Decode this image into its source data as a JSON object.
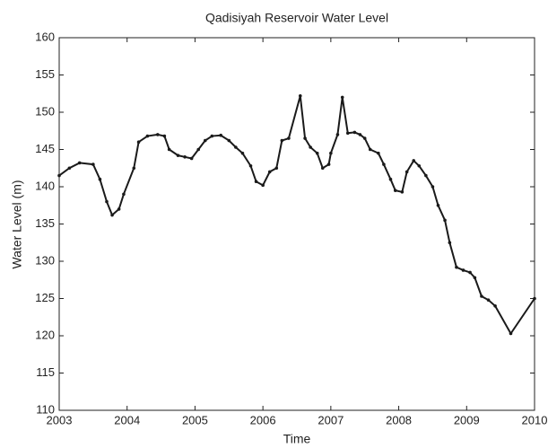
{
  "chart_data": {
    "type": "line",
    "title": "Qadisiyah Reservoir Water Level",
    "x_label": "Time",
    "y_label": "Water Level (m)",
    "x": [
      2003.0,
      2003.15,
      2003.3,
      2003.5,
      2003.6,
      2003.7,
      2003.78,
      2003.88,
      2003.95,
      2004.1,
      2004.17,
      2004.3,
      2004.45,
      2004.55,
      2004.62,
      2004.75,
      2004.85,
      2004.95,
      2005.05,
      2005.15,
      2005.25,
      2005.38,
      2005.5,
      2005.6,
      2005.7,
      2005.82,
      2005.9,
      2006.0,
      2006.1,
      2006.2,
      2006.28,
      2006.38,
      2006.55,
      2006.62,
      2006.7,
      2006.8,
      2006.88,
      2006.97,
      2007.0,
      2007.1,
      2007.17,
      2007.25,
      2007.35,
      2007.43,
      2007.5,
      2007.58,
      2007.7,
      2007.78,
      2007.88,
      2007.95,
      2008.05,
      2008.12,
      2008.22,
      2008.3,
      2008.4,
      2008.5,
      2008.58,
      2008.68,
      2008.75,
      2008.85,
      2008.95,
      2009.05,
      2009.12,
      2009.22,
      2009.32,
      2009.42,
      2009.65,
      2010.0
    ],
    "series": [
      {
        "name": "Water Level",
        "color": "#1a1a1a",
        "values": [
          141.5,
          142.5,
          143.2,
          143.0,
          141,
          138,
          136.2,
          137,
          139,
          142.5,
          146,
          146.8,
          147,
          146.8,
          145,
          144.2,
          144,
          143.8,
          145,
          146.2,
          146.8,
          146.9,
          146.2,
          145.3,
          144.5,
          142.8,
          140.7,
          140.2,
          142,
          142.5,
          146.2,
          146.5,
          152.2,
          146.5,
          145.3,
          144.5,
          142.5,
          143,
          144.5,
          147,
          152,
          147.2,
          147.3,
          147,
          146.5,
          145,
          144.5,
          143,
          141,
          139.5,
          139.3,
          142,
          143.5,
          142.8,
          141.5,
          140,
          137.5,
          135.5,
          132.5,
          129.2,
          128.8,
          128.5,
          127.8,
          125.3,
          124.8,
          124,
          120.3,
          125
        ]
      }
    ],
    "xlim": [
      2003,
      2010
    ],
    "xticks": [
      2003,
      2004,
      2005,
      2006,
      2007,
      2008,
      2009,
      2010
    ],
    "ylim": [
      110,
      160
    ],
    "yticks": [
      110,
      115,
      120,
      125,
      130,
      135,
      140,
      145,
      150,
      155,
      160
    ],
    "grid": false
  }
}
